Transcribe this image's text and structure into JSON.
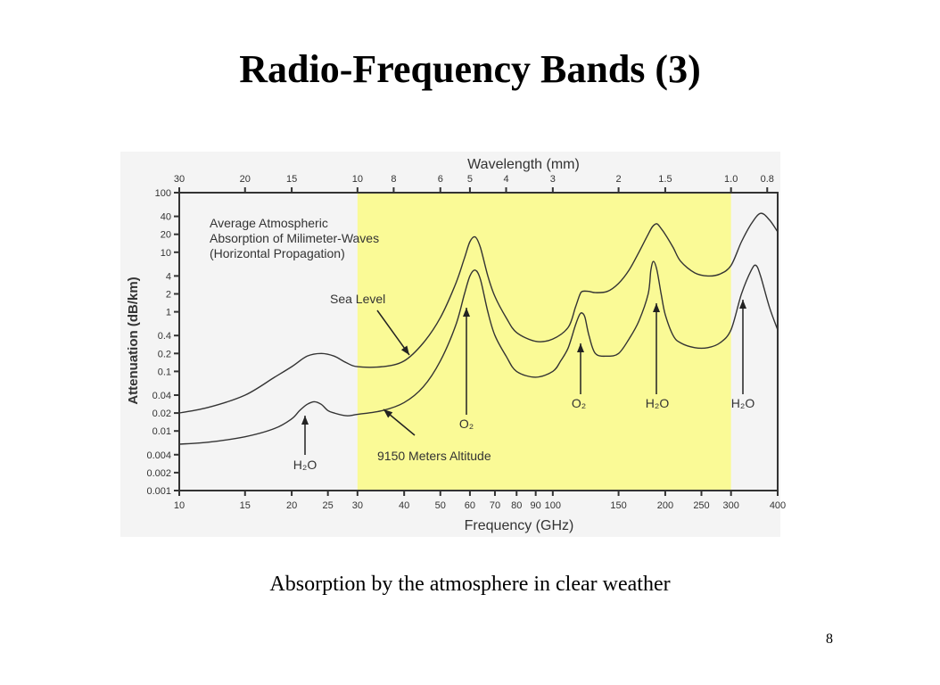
{
  "slide": {
    "title": "Radio-Frequency Bands (3)",
    "caption": "Absorption by the atmosphere in clear weather",
    "page_number": "8"
  },
  "chart_data": {
    "type": "line",
    "title": "Wavelength (mm)",
    "xlabel": "Frequency (GHz)",
    "ylabel": "Attenuation (dB/km)",
    "x_scale": "log",
    "y_scale": "log",
    "xlim": [
      10,
      400
    ],
    "ylim": [
      0.001,
      100
    ],
    "x_ticks": [
      "10",
      "15",
      "20",
      "25",
      "30",
      "40",
      "50",
      "60",
      "70",
      "80",
      "90",
      "100",
      "150",
      "200",
      "250",
      "300",
      "400"
    ],
    "y_ticks": [
      "100",
      "40",
      "20",
      "10",
      "4",
      "2",
      "1",
      "0.4",
      "0.2",
      "0.1",
      "0.04",
      "0.02",
      "0.01",
      "0.004",
      "0.002",
      "0.001"
    ],
    "top_axis": {
      "label": "Wavelength (mm)",
      "ticks": [
        "30",
        "20",
        "15",
        "10",
        "8",
        "6",
        "5",
        "4",
        "3",
        "2",
        "1.5",
        "1.0",
        "0.8"
      ]
    },
    "highlight_band": {
      "x_range": [
        30,
        300
      ],
      "color": "#fafa96"
    },
    "legend_text": [
      "Average Atmospheric",
      "Absorption of Milimeter-Waves",
      "(Horizontal Propagation)"
    ],
    "series": [
      {
        "name": "Sea Level",
        "x": [
          10,
          12,
          15,
          18,
          20,
          22,
          24,
          26,
          28,
          30,
          35,
          40,
          45,
          50,
          55,
          58,
          60,
          62,
          64,
          67,
          70,
          75,
          80,
          90,
          100,
          110,
          115,
          118,
          120,
          125,
          130,
          140,
          150,
          160,
          170,
          180,
          185,
          190,
          195,
          200,
          210,
          220,
          240,
          260,
          280,
          300,
          320,
          340,
          360,
          380,
          400
        ],
        "y": [
          0.02,
          0.025,
          0.04,
          0.08,
          0.12,
          0.18,
          0.2,
          0.18,
          0.14,
          0.12,
          0.12,
          0.15,
          0.3,
          0.8,
          3,
          8,
          15,
          18,
          12,
          4,
          1.8,
          0.8,
          0.45,
          0.32,
          0.35,
          0.55,
          1.2,
          1.9,
          2.2,
          2.2,
          2.1,
          2.2,
          3,
          5,
          10,
          20,
          27,
          30,
          25,
          20,
          12,
          7,
          4.5,
          4,
          4.3,
          6,
          15,
          30,
          45,
          35,
          22
        ]
      },
      {
        "name": "9150 Meters Altitude",
        "x": [
          10,
          12,
          15,
          18,
          20,
          21,
          22,
          23,
          24,
          25,
          26,
          28,
          30,
          35,
          40,
          45,
          50,
          55,
          58,
          60,
          62,
          64,
          67,
          70,
          75,
          80,
          90,
          100,
          105,
          110,
          115,
          118,
          120,
          122,
          125,
          130,
          140,
          150,
          160,
          170,
          180,
          183,
          186,
          190,
          195,
          200,
          210,
          220,
          240,
          260,
          280,
          300,
          320,
          340,
          350,
          360,
          380,
          400
        ],
        "y": [
          0.006,
          0.0065,
          0.008,
          0.011,
          0.016,
          0.022,
          0.028,
          0.031,
          0.028,
          0.022,
          0.02,
          0.018,
          0.019,
          0.022,
          0.03,
          0.055,
          0.15,
          0.6,
          2,
          4,
          5,
          3.5,
          1,
          0.4,
          0.18,
          0.1,
          0.08,
          0.1,
          0.15,
          0.25,
          0.6,
          0.9,
          0.95,
          0.8,
          0.4,
          0.2,
          0.18,
          0.2,
          0.35,
          0.7,
          2,
          5,
          7,
          5,
          2,
          0.9,
          0.4,
          0.3,
          0.25,
          0.25,
          0.3,
          0.5,
          2,
          5,
          6,
          4,
          1.2,
          0.5
        ]
      }
    ],
    "annotations": [
      {
        "text": "Sea Level",
        "x": 52,
        "y": 0.2
      },
      {
        "text": "9150 Meters Altitude",
        "x": 36,
        "y": 0.02
      },
      {
        "text": "H₂O",
        "x": 22,
        "y": 0.03
      },
      {
        "text": "O₂",
        "x": 60,
        "y": 5
      },
      {
        "text": "O₂",
        "x": 119,
        "y": 0.95
      },
      {
        "text": "H₂O",
        "x": 183,
        "y": 7
      },
      {
        "text": "H₂O",
        "x": 325,
        "y": 6
      }
    ]
  }
}
